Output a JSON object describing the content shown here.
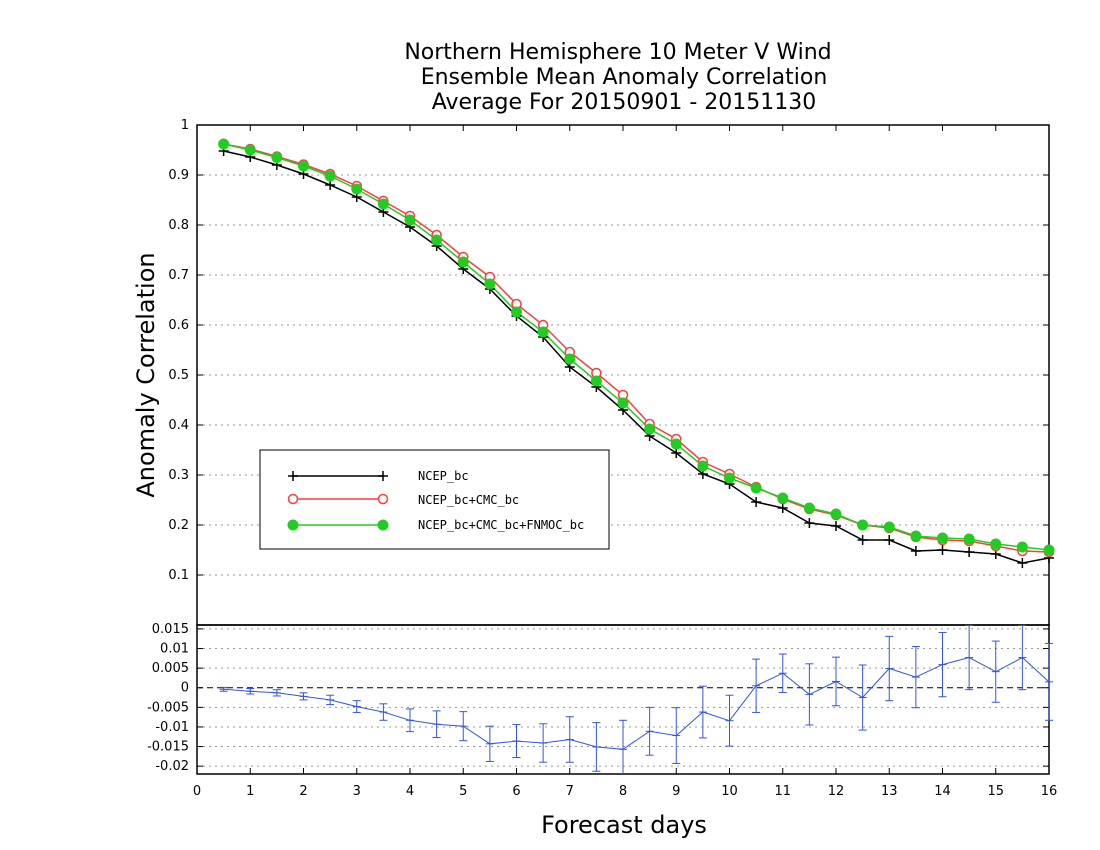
{
  "chart_data": [
    {
      "type": "line",
      "title_lines": [
        "Northern Hemisphere 10 Meter V Wind",
        "Ensemble Mean Anomaly Correlation",
        "Average For 20150901 - 20151130"
      ],
      "xlabel": "Forecast days",
      "ylabel": "Anomaly Correlation",
      "xlim": [
        0,
        16
      ],
      "ylim": [
        0,
        1
      ],
      "yticks": [
        "0.1",
        "0.2",
        "0.3",
        "0.4",
        "0.5",
        "0.6",
        "0.7",
        "0.8",
        "0.9",
        "1"
      ],
      "grid": true,
      "legend_position": "center-left",
      "x": [
        0.5,
        1,
        1.5,
        2,
        2.5,
        3,
        3.5,
        4,
        4.5,
        5,
        5.5,
        6,
        6.5,
        7,
        7.5,
        8,
        8.5,
        9,
        9.5,
        10,
        10.5,
        11,
        11.5,
        12,
        12.5,
        13,
        13.5,
        14,
        14.5,
        15,
        15.5,
        16
      ],
      "series": [
        {
          "name": "NCEP_bc",
          "color": "#000000",
          "marker": "plus",
          "values": [
            0.948,
            0.936,
            0.92,
            0.902,
            0.88,
            0.856,
            0.826,
            0.796,
            0.758,
            0.712,
            0.672,
            0.618,
            0.576,
            0.516,
            0.476,
            0.43,
            0.378,
            0.344,
            0.302,
            0.282,
            0.246,
            0.234,
            0.204,
            0.198,
            0.17,
            0.17,
            0.148,
            0.15,
            0.146,
            0.142,
            0.124,
            0.134
          ]
        },
        {
          "name": "NCEP_bc+CMC_bc",
          "color": "#ff3b3b",
          "marker": "open-circle",
          "values": [
            0.962,
            0.952,
            0.937,
            0.921,
            0.902,
            0.878,
            0.848,
            0.818,
            0.78,
            0.736,
            0.696,
            0.642,
            0.6,
            0.546,
            0.504,
            0.46,
            0.402,
            0.372,
            0.326,
            0.302,
            0.276,
            0.252,
            0.232,
            0.22,
            0.2,
            0.194,
            0.176,
            0.17,
            0.168,
            0.158,
            0.148,
            0.146
          ]
        },
        {
          "name": "NCEP_bc+CMC_bc+FNMOC_bc",
          "color": "#22cc22",
          "marker": "filled-circle",
          "values": [
            0.962,
            0.95,
            0.935,
            0.918,
            0.898,
            0.872,
            0.842,
            0.81,
            0.77,
            0.726,
            0.682,
            0.626,
            0.586,
            0.532,
            0.488,
            0.444,
            0.392,
            0.362,
            0.318,
            0.294,
            0.274,
            0.254,
            0.234,
            0.222,
            0.2,
            0.196,
            0.178,
            0.174,
            0.172,
            0.162,
            0.156,
            0.15
          ]
        }
      ]
    },
    {
      "type": "line",
      "xlabel": "Forecast days",
      "ylabel": "",
      "xlim": [
        0,
        16
      ],
      "ylim": [
        -0.022,
        0.016
      ],
      "xticks": [
        "0",
        "1",
        "2",
        "3",
        "4",
        "5",
        "6",
        "7",
        "8",
        "9",
        "10",
        "11",
        "12",
        "13",
        "14",
        "15",
        "16"
      ],
      "yticks": [
        "-0.02",
        "-0.015",
        "-0.01",
        "-0.005",
        "0",
        "0.005",
        "0.01",
        "0.015"
      ],
      "grid": true,
      "zero_line": true,
      "x": [
        0.5,
        1,
        1.5,
        2,
        2.5,
        3,
        3.5,
        4,
        4.5,
        5,
        5.5,
        6,
        6.5,
        7,
        7.5,
        8,
        8.5,
        9,
        9.5,
        10,
        10.5,
        11,
        11.5,
        12,
        12.5,
        13,
        13.5,
        14,
        14.5,
        15,
        15.5,
        16
      ],
      "series": [
        {
          "color": "#3355dd",
          "values": [
            -0.0004,
            -0.0009,
            -0.0013,
            -0.0022,
            -0.0031,
            -0.0048,
            -0.0062,
            -0.0083,
            -0.0093,
            -0.0098,
            -0.0143,
            -0.0136,
            -0.0141,
            -0.0132,
            -0.0151,
            -0.0157,
            -0.0111,
            -0.0122,
            -0.0062,
            -0.0084,
            0.0005,
            0.0037,
            -0.0017,
            0.0016,
            -0.0025,
            0.0049,
            0.0027,
            0.0059,
            0.0077,
            0.0041,
            0.0077,
            0.0015
          ],
          "error": [
            0.0005,
            0.0007,
            0.0008,
            0.0009,
            0.0012,
            0.0015,
            0.0021,
            0.0029,
            0.0034,
            0.0037,
            0.0045,
            0.0042,
            0.0049,
            0.0058,
            0.0062,
            0.0074,
            0.0061,
            0.0071,
            0.0066,
            0.0065,
            0.0068,
            0.0049,
            0.0078,
            0.0062,
            0.0083,
            0.0082,
            0.0078,
            0.0082,
            0.0082,
            0.0078,
            0.0082,
            0.0098
          ]
        }
      ]
    }
  ]
}
